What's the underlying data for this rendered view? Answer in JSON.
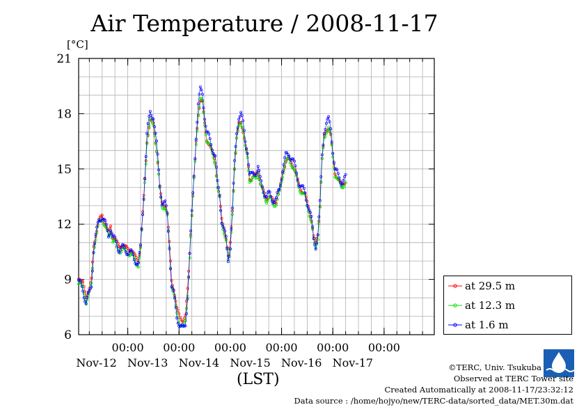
{
  "title": "Air Temperature / 2008-11-17",
  "y_unit": "[°C]",
  "x_axis_label": "(LST)",
  "legend": [
    {
      "label": "at 29.5 m",
      "color": "#ff0000"
    },
    {
      "label": "at 12.3 m",
      "color": "#00e000"
    },
    {
      "label": "at 1.6 m",
      "color": "#0000ff"
    }
  ],
  "credits": {
    "copyright": "©TERC, Univ. Tsukuba",
    "observed": "Observed at TERC Tower site",
    "created": "Created Automatically at 2008-11-17/23:32:12",
    "source": "Data source : /home/hojyo/new/TERC-data/sorted_data/MET.30m.dat"
  },
  "chart_data": {
    "type": "line",
    "title": "Air Temperature / 2008-11-17",
    "ylabel": "[°C]",
    "xlabel": "(LST)",
    "ylim": [
      6,
      21
    ],
    "yticks": [
      6,
      9,
      12,
      15,
      18,
      21
    ],
    "xlim": [
      "2008-11-11T01:00",
      "2008-11-17T23:30"
    ],
    "xticks": [
      {
        "time": "2008-11-12T00:00",
        "label": "00:00",
        "day": "Nov-12"
      },
      {
        "time": "2008-11-13T00:00",
        "label": "00:00",
        "day": "Nov-13"
      },
      {
        "time": "2008-11-14T00:00",
        "label": "00:00",
        "day": "Nov-14"
      },
      {
        "time": "2008-11-15T00:00",
        "label": "00:00",
        "day": "Nov-15"
      },
      {
        "time": "2008-11-16T00:00",
        "label": "00:00",
        "day": "Nov-16"
      },
      {
        "time": "2008-11-17T00:00",
        "label": "00:00",
        "day": "Nov-17"
      }
    ],
    "grid": true,
    "legend_position": "right",
    "base_time": [
      [
        "2008-11-11T01:00",
        9.1
      ],
      [
        "2008-11-11T03:00",
        8.8
      ],
      [
        "2008-11-11T04:30",
        8.1
      ],
      [
        "2008-11-11T06:00",
        8.5
      ],
      [
        "2008-11-11T07:00",
        9.0
      ],
      [
        "2008-11-11T08:00",
        10.8
      ],
      [
        "2008-11-11T09:00",
        11.4
      ],
      [
        "2008-11-11T10:30",
        12.2
      ],
      [
        "2008-11-11T12:00",
        12.5
      ],
      [
        "2008-11-11T13:30",
        12.0
      ],
      [
        "2008-11-11T15:00",
        11.5
      ],
      [
        "2008-11-11T16:00",
        11.9
      ],
      [
        "2008-11-11T17:00",
        11.3
      ],
      [
        "2008-11-11T18:00",
        11.2
      ],
      [
        "2008-11-11T20:00",
        10.8
      ],
      [
        "2008-11-11T22:00",
        10.8
      ],
      [
        "2008-11-12T00:00",
        10.7
      ],
      [
        "2008-11-12T02:00",
        10.5
      ],
      [
        "2008-11-12T04:00",
        10.2
      ],
      [
        "2008-11-12T05:00",
        10.0
      ],
      [
        "2008-11-12T06:00",
        10.8
      ],
      [
        "2008-11-12T07:30",
        13.5
      ],
      [
        "2008-11-12T09:00",
        16.5
      ],
      [
        "2008-11-12T10:30",
        17.6
      ],
      [
        "2008-11-12T12:00",
        17.5
      ],
      [
        "2008-11-12T13:30",
        16.0
      ],
      [
        "2008-11-12T15:00",
        14.0
      ],
      [
        "2008-11-12T16:00",
        13.2
      ],
      [
        "2008-11-12T17:30",
        13.0
      ],
      [
        "2008-11-12T18:30",
        12.5
      ],
      [
        "2008-11-12T19:30",
        11.0
      ],
      [
        "2008-11-12T20:30",
        9.0
      ],
      [
        "2008-11-12T21:30",
        8.5
      ],
      [
        "2008-11-12T23:00",
        7.4
      ],
      [
        "2008-11-13T00:30",
        7.0
      ],
      [
        "2008-11-13T02:00",
        6.7
      ],
      [
        "2008-11-13T03:00",
        7.0
      ],
      [
        "2008-11-13T04:00",
        8.5
      ],
      [
        "2008-11-13T05:00",
        10.5
      ],
      [
        "2008-11-13T06:00",
        12.5
      ],
      [
        "2008-11-13T07:00",
        14.5
      ],
      [
        "2008-11-13T08:00",
        16.5
      ],
      [
        "2008-11-13T09:00",
        18.0
      ],
      [
        "2008-11-13T10:00",
        18.7
      ],
      [
        "2008-11-13T11:00",
        18.6
      ],
      [
        "2008-11-13T12:00",
        17.5
      ],
      [
        "2008-11-13T13:00",
        16.6
      ],
      [
        "2008-11-13T14:30",
        16.2
      ],
      [
        "2008-11-13T16:00",
        15.8
      ],
      [
        "2008-11-13T17:00",
        15.4
      ],
      [
        "2008-11-13T18:00",
        14.0
      ],
      [
        "2008-11-13T19:00",
        13.5
      ],
      [
        "2008-11-13T20:00",
        12.3
      ],
      [
        "2008-11-13T21:00",
        11.8
      ],
      [
        "2008-11-13T22:00",
        11.2
      ],
      [
        "2008-11-13T23:00",
        10.2
      ],
      [
        "2008-11-14T00:00",
        11.0
      ],
      [
        "2008-11-14T01:00",
        12.8
      ],
      [
        "2008-11-14T02:00",
        15.0
      ],
      [
        "2008-11-14T03:00",
        16.6
      ],
      [
        "2008-11-14T04:00",
        17.5
      ],
      [
        "2008-11-14T05:00",
        17.6
      ],
      [
        "2008-11-14T06:00",
        17.0
      ],
      [
        "2008-11-14T07:00",
        16.2
      ],
      [
        "2008-11-14T08:00",
        15.8
      ],
      [
        "2008-11-14T09:00",
        14.5
      ],
      [
        "2008-11-14T10:00",
        14.4
      ],
      [
        "2008-11-14T11:00",
        14.6
      ],
      [
        "2008-11-14T12:00",
        14.7
      ],
      [
        "2008-11-14T13:00",
        14.9
      ],
      [
        "2008-11-14T14:00",
        14.2
      ],
      [
        "2008-11-14T15:30",
        13.8
      ],
      [
        "2008-11-14T17:00",
        13.4
      ],
      [
        "2008-11-14T18:30",
        13.5
      ],
      [
        "2008-11-14T20:00",
        13.3
      ],
      [
        "2008-11-14T21:30",
        13.2
      ],
      [
        "2008-11-14T23:00",
        13.8
      ],
      [
        "2008-11-15T00:30",
        14.8
      ],
      [
        "2008-11-15T02:00",
        15.4
      ],
      [
        "2008-11-15T03:30",
        15.6
      ],
      [
        "2008-11-15T05:00",
        15.3
      ],
      [
        "2008-11-15T06:30",
        14.8
      ],
      [
        "2008-11-15T08:00",
        14.2
      ],
      [
        "2008-11-15T09:30",
        13.8
      ],
      [
        "2008-11-15T11:00",
        13.6
      ],
      [
        "2008-11-15T12:30",
        13.0
      ],
      [
        "2008-11-15T14:00",
        12.2
      ],
      [
        "2008-11-15T15:00",
        11.3
      ],
      [
        "2008-11-15T16:00",
        11.0
      ],
      [
        "2008-11-15T17:00",
        11.5
      ],
      [
        "2008-11-15T18:00",
        13.0
      ],
      [
        "2008-11-15T19:00",
        15.5
      ],
      [
        "2008-11-15T20:00",
        16.8
      ],
      [
        "2008-11-15T21:00",
        17.1
      ],
      [
        "2008-11-15T22:00",
        17.2
      ],
      [
        "2008-11-15T23:00",
        16.8
      ],
      [
        "2008-11-16T00:00",
        15.8
      ],
      [
        "2008-11-16T01:00",
        14.8
      ],
      [
        "2008-11-16T02:30",
        14.4
      ],
      [
        "2008-11-16T04:00",
        14.2
      ],
      [
        "2008-11-16T06:00",
        14.3
      ]
    ],
    "series": [
      {
        "name": "at 29.5 m",
        "offsets": []
      },
      {
        "name": "at 12.3 m",
        "offsets": []
      },
      {
        "name": "at 1.6 m",
        "offsets": []
      }
    ]
  }
}
